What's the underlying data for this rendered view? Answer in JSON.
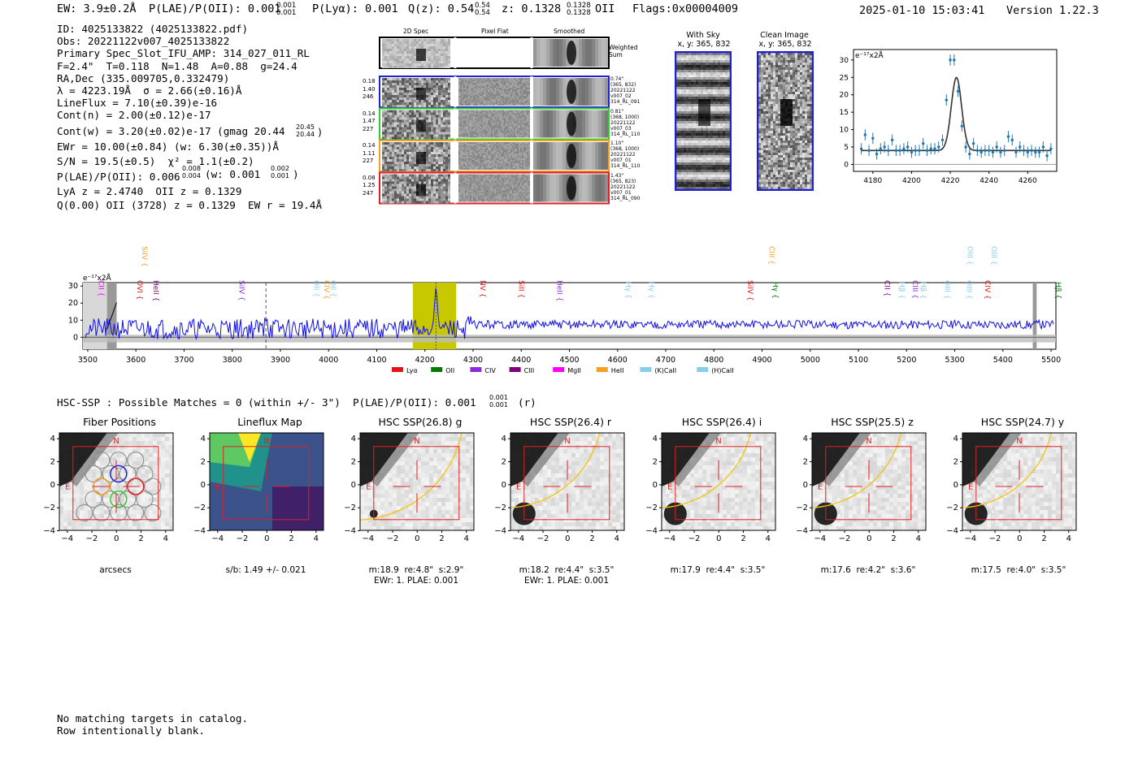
{
  "header": {
    "ew": "EW: 3.9±0.2Å",
    "plae": "P(LAE)/P(OII): 0.001",
    "plae_sub": "0.001",
    "plae_sup": "0.001",
    "plya": "P(Lyα): 0.001",
    "qz": "Q(z): 0.54",
    "qz_sup": "0.54",
    "qz_sub": "0.54",
    "z": "z: 0.1328",
    "z_sup": "0.1328",
    "z_sub": "0.1328",
    "z_line": "OII",
    "flags": "Flags:0x00004009",
    "timestamp": "2025-01-10 15:03:41",
    "version": "Version 1.22.3"
  },
  "info": {
    "lines": [
      "ID: 4025133822 (4025133822.pdf)",
      "Obs: 20221122v007_4025133822",
      "Primary Spec_Slot_IFU_AMP: 314_027_011_RL",
      "F=2.4\"  T=0.118  N=1.48  A=0.88  g=24.4",
      "RA,Dec (335.009705,0.332479)",
      "λ = 4223.19Å  σ = 2.66(±0.16)Å",
      "LineFlux = 7.10(±0.39)e-16",
      "Cont(n) = 2.00(±0.12)e-17",
      "Cont(w) = 3.20(±0.02)e-17 (gmag 20.44",
      "EWr = 10.00(±0.84) (w: 6.30(±0.35))Å",
      "S/N = 19.5(±0.5)  χ² = 1.1(±0.2)",
      "P(LAE)/P(OII): 0.006",
      "LyA z = 2.4740  OII z = 0.1329",
      "Q(0.00) OII (3728) z = 0.1329  EW r = 19.4Å"
    ],
    "gmag_sup": "20.45",
    "gmag_sub": "20.44",
    "plae_sup": "0.008",
    "plae_sub": "0.004",
    "plae_w": "(w: 0.001",
    "plae_w_sup": "0.002",
    "plae_w_sub": "0.001",
    "plae_close": ")"
  },
  "cutouts": {
    "col_titles": [
      "2D Spec",
      "Pixel Flat",
      "Smoothed"
    ],
    "weighted_label": "Weighted Sum",
    "rows": [
      {
        "left": [
          "0.18",
          "1.40",
          "246"
        ],
        "right": [
          "0.74\"",
          "(365, 832)",
          "20221122",
          "v007_02",
          "314_RL_091"
        ],
        "color": "#1f1fd6"
      },
      {
        "left": [
          "0.14",
          "1.47",
          "227"
        ],
        "right": [
          "0.81\"",
          "(368, 1000)",
          "20221122",
          "v007_03",
          "314_RL_110"
        ],
        "color": "#2ecc2e"
      },
      {
        "left": [
          "0.14",
          "1.11",
          "227"
        ],
        "right": [
          "1.10\"",
          "(368, 1000)",
          "20221122",
          "v007_01",
          "314_RL_110"
        ],
        "color": "#f0a020"
      },
      {
        "left": [
          "0.08",
          "1.25",
          "247"
        ],
        "right": [
          "1.43\"",
          "(365, 823)",
          "20221122",
          "v007_01",
          "314_RL_090"
        ],
        "color": "#e02020"
      }
    ],
    "with_sky": "With Sky",
    "with_sky_xy": "x, y: 365, 832",
    "clean_image": "Clean Image",
    "clean_image_xy": "x, y: 365, 832"
  },
  "zoom_chart": {
    "unit": "e⁻¹⁷x2Å",
    "x_ticks": [
      "4180",
      "4200",
      "4220",
      "4240",
      "4260"
    ],
    "y_ticks": [
      "0",
      "5",
      "10",
      "15",
      "20",
      "25",
      "30"
    ]
  },
  "spectrum": {
    "unit": "e⁻¹⁷x2Å",
    "x_ticks": [
      "3500",
      "3600",
      "3700",
      "3800",
      "3900",
      "4000",
      "4100",
      "4200",
      "4300",
      "4400",
      "4500",
      "4600",
      "4700",
      "4800",
      "4900",
      "5000",
      "5100",
      "5200",
      "5300",
      "5400",
      "5500"
    ],
    "y_ticks": [
      "0",
      "10",
      "20",
      "30"
    ],
    "legend": [
      {
        "label": "Lyα",
        "color": "#e8101a"
      },
      {
        "label": "OII",
        "color": "#007a00"
      },
      {
        "label": "CIV",
        "color": "#8a2be2"
      },
      {
        "label": "CIII",
        "color": "#800080"
      },
      {
        "label": "MgII",
        "color": "#ff00ff"
      },
      {
        "label": "HeII",
        "color": "#f5a020"
      },
      {
        "label": "(K)CaII",
        "color": "#87ceeb"
      },
      {
        "label": "(H)CaII",
        "color": "#87ceeb"
      }
    ],
    "line_labels": [
      {
        "label": "CII",
        "wl": 3518,
        "row": 2,
        "color": "#ff00ff"
      },
      {
        "label": "SiIV",
        "wl": 3608,
        "row": 0,
        "color": "#f5a020"
      },
      {
        "label": "OVI",
        "wl": 3598,
        "row": 2,
        "color": "#e8101a"
      },
      {
        "label": "HeII",
        "wl": 3632,
        "row": 2,
        "color": "#800080"
      },
      {
        "label": "SiIV",
        "wl": 3810,
        "row": 2,
        "color": "#8a2be2"
      },
      {
        "label": "OII",
        "wl": 3965,
        "row": 2,
        "color": "#87ceeb"
      },
      {
        "label": "CIV",
        "wl": 3986,
        "row": 2,
        "color": "#f5a020"
      },
      {
        "label": "OII",
        "wl": 4000,
        "row": 2,
        "color": "#87ceeb"
      },
      {
        "label": "NV",
        "wl": 4310,
        "row": 2,
        "color": "#e8101a"
      },
      {
        "label": "SiII",
        "wl": 4390,
        "row": 2,
        "color": "#e8101a"
      },
      {
        "label": "HeII",
        "wl": 4470,
        "row": 2,
        "color": "#8a2be2"
      },
      {
        "label": "Hγ",
        "wl": 4612,
        "row": 3,
        "color": "#87ceeb"
      },
      {
        "label": "Hγ",
        "wl": 4660,
        "row": 3,
        "color": "#87ceeb"
      },
      {
        "label": "SiIV",
        "wl": 4865,
        "row": 2,
        "color": "#e8101a"
      },
      {
        "label": "CIII",
        "wl": 4910,
        "row": 0,
        "color": "#f5a020"
      },
      {
        "label": "Hγ",
        "wl": 4918,
        "row": 3,
        "color": "#007a00"
      },
      {
        "label": "CII",
        "wl": 5150,
        "row": 2,
        "color": "#800080"
      },
      {
        "label": "Hβ",
        "wl": 5180,
        "row": 3,
        "color": "#87ceeb"
      },
      {
        "label": "CIII",
        "wl": 5208,
        "row": 2,
        "color": "#8a2be2"
      },
      {
        "label": "Hβ",
        "wl": 5225,
        "row": 3,
        "color": "#87ceeb"
      },
      {
        "label": "OIII",
        "wl": 5275,
        "row": 2,
        "color": "#87ceeb"
      },
      {
        "label": "OIII",
        "wl": 5322,
        "row": 0,
        "color": "#87ceeb"
      },
      {
        "label": "OIII",
        "wl": 5320,
        "row": 2,
        "color": "#87ceeb"
      },
      {
        "label": "OIII",
        "wl": 5372,
        "row": 0,
        "color": "#87ceeb"
      },
      {
        "label": "CIV",
        "wl": 5358,
        "row": 2,
        "color": "#e8101a"
      },
      {
        "label": "Hβ",
        "wl": 5505,
        "row": 3,
        "color": "#007a00"
      }
    ]
  },
  "hsc": {
    "title": "HSC-SSP : Possible Matches = 0 (within +/- 3\")  P(LAE)/P(OII): 0.001",
    "sup": "0.001",
    "sub": "0.001",
    "band": "(r)",
    "panels": [
      {
        "title": "Fiber Positions",
        "cap1": "arcsecs",
        "cap2": ""
      },
      {
        "title": "Lineflux Map",
        "cap1": "s/b: 1.49 +/- 0.021",
        "cap2": ""
      },
      {
        "title": "HSC SSP(26.8) g",
        "cap1": "m:18.9  re:4.8\"  s:2.9\"",
        "cap2": "EWr: 1. PLAE: 0.001"
      },
      {
        "title": "HSC SSP(26.4) r",
        "cap1": "m:18.2  re:4.4\"  s:3.5\"",
        "cap2": "EWr: 1. PLAE: 0.001"
      },
      {
        "title": "HSC SSP(26.4) i",
        "cap1": "m:17.9  re:4.4\"  s:3.5\"",
        "cap2": ""
      },
      {
        "title": "HSC SSP(25.5) z",
        "cap1": "m:17.6  re:4.2\"  s:3.6\"",
        "cap2": ""
      },
      {
        "title": "HSC SSP(24.7) y",
        "cap1": "m:17.5  re:4.0\"  s:3.5\"",
        "cap2": ""
      }
    ],
    "ticks": [
      "−4",
      "−2",
      "0",
      "2",
      "4"
    ],
    "n_label": "N",
    "e_label": "E"
  },
  "footer": {
    "line1": "No matching targets in catalog.",
    "line2": "Row intentionally blank."
  },
  "chart_data": [
    {
      "type": "scatter",
      "title": "",
      "ylabel": "e⁻¹⁷x2Å",
      "xlim": [
        4170,
        4275
      ],
      "ylim": [
        -2,
        33
      ],
      "x": [
        4174,
        4176,
        4178,
        4180,
        4182,
        4184,
        4186,
        4188,
        4190,
        4192,
        4194,
        4196,
        4198,
        4200,
        4202,
        4204,
        4206,
        4208,
        4210,
        4212,
        4214,
        4216,
        4218,
        4220,
        4222,
        4224,
        4226,
        4228,
        4230,
        4232,
        4234,
        4236,
        4238,
        4240,
        4242,
        4244,
        4246,
        4248,
        4250,
        4252,
        4254,
        4256,
        4258,
        4260,
        4262,
        4264,
        4266,
        4268,
        4270,
        4272
      ],
      "y": [
        4.5,
        8.5,
        4,
        7.5,
        3,
        4.5,
        5,
        4,
        7,
        4,
        4,
        4.5,
        5,
        3.5,
        4,
        4,
        6,
        4,
        4.5,
        4.5,
        5,
        7,
        18.5,
        30,
        30,
        21,
        11,
        5,
        3,
        6,
        4,
        3.5,
        4,
        4,
        3.5,
        5,
        3.5,
        4,
        8,
        7,
        3.5,
        5,
        4,
        3.5,
        4,
        3.5,
        3.5,
        5,
        2.5,
        4.5
      ],
      "model": {
        "center": 4223.2,
        "sigma": 2.66,
        "peak": 25,
        "continuum": 4
      }
    },
    {
      "type": "line",
      "title": "",
      "ylabel": "e⁻¹⁷x2Å",
      "xlim": [
        3490,
        5510
      ],
      "ylim": [
        -7,
        32
      ],
      "series": [
        {
          "values_note": "noisy continuum ~6-10 with emission at 4223"
        }
      ],
      "peak": {
        "x": 4223,
        "y": 29
      },
      "highlight_band": [
        4175,
        4265
      ],
      "markers": [
        3870
      ]
    }
  ]
}
